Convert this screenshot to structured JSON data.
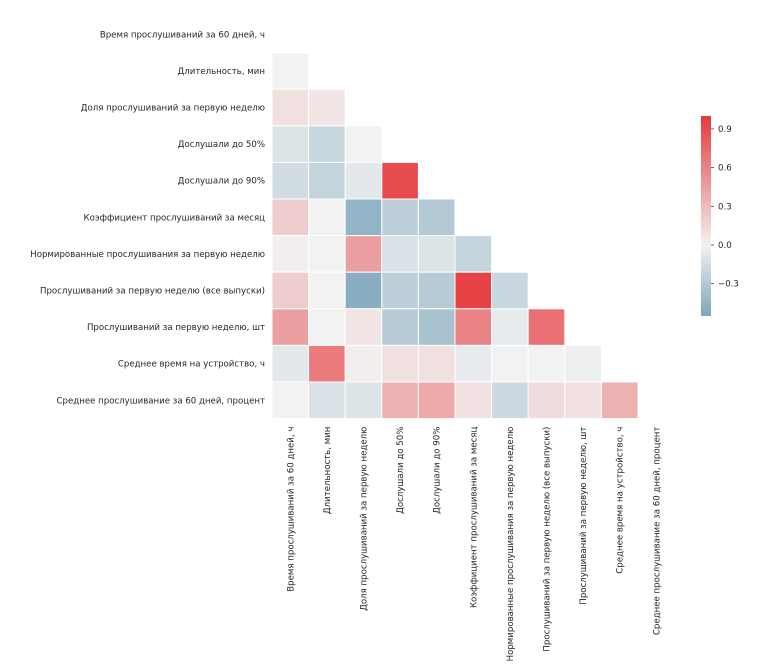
{
  "chart_data": {
    "type": "heatmap",
    "title": "",
    "xlabel": "",
    "ylabel": "",
    "labels": [
      "Время прослушиваний за 60 дней, ч",
      "Длительность, мин",
      "Доля прослушиваний за первую неделю",
      "Дослушали до 50%",
      "Дослушали до 90%",
      "Коэффициент прослушиваний за месяц",
      "Нормированные прослушивания за первую неделю",
      "Прослушиваний за первую неделю (все выпуски)",
      "Прослушиваний за первую неделю, шт",
      "Среднее время на устройство, ч",
      "Среднее прослушивание за 60 дней, процент"
    ],
    "mask": "upper-triangle (diagonal masked)",
    "values": [
      [],
      [
        0.0
      ],
      [
        0.1,
        0.07
      ],
      [
        -0.1,
        -0.2,
        0.0
      ],
      [
        -0.15,
        -0.22,
        -0.07,
        0.9
      ],
      [
        0.2,
        0.0,
        -0.45,
        -0.25,
        -0.3
      ],
      [
        0.02,
        0.0,
        0.45,
        -0.12,
        -0.1,
        -0.22
      ],
      [
        0.2,
        0.0,
        -0.5,
        -0.25,
        -0.28,
        0.95,
        -0.2
      ],
      [
        0.45,
        0.0,
        0.07,
        -0.28,
        -0.35,
        0.6,
        -0.05,
        0.7
      ],
      [
        -0.07,
        0.65,
        0.02,
        0.1,
        0.1,
        -0.05,
        0.0,
        0.0,
        -0.03
      ],
      [
        0.0,
        -0.12,
        -0.1,
        0.35,
        0.4,
        0.1,
        -0.18,
        0.12,
        0.1,
        0.35
      ]
    ],
    "colorbar": {
      "min": -0.55,
      "max": 1.0,
      "ticks": [
        0.9,
        0.6,
        0.3,
        0.0,
        -0.3
      ],
      "tick_labels": [
        "0.9",
        "0.6",
        "0.3",
        "0.0",
        "−0.3"
      ]
    },
    "colors": {
      "negative": "#7ea6bc",
      "center": "#f2f2f2",
      "positive": "#e5393c"
    },
    "grid": false,
    "legend": "colorbar-right"
  }
}
